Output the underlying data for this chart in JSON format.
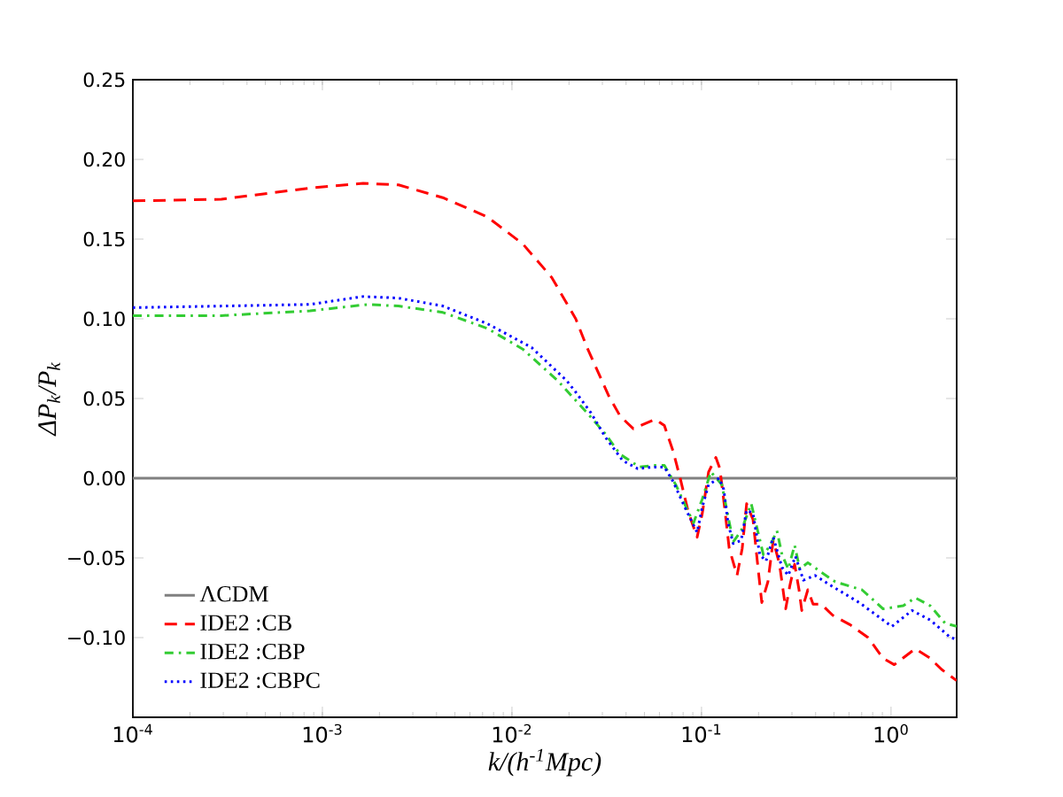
{
  "chart_data": {
    "type": "line",
    "xlabel": "k/(h$^{-1}$Mpc)",
    "ylabel": "ΔP$_{k}$/P$_{k}$",
    "log": "x",
    "legend": "bottom left",
    "xlim": [
      0.0001,
      2.22
    ],
    "ylim": [
      -0.15,
      0.25
    ],
    "xticks": [
      {
        "value": 0.0001,
        "label": "10$^{-4}$"
      },
      {
        "value": 0.001,
        "label": "10$^{-3}$"
      },
      {
        "value": 0.01,
        "label": "10$^{-2}$"
      },
      {
        "value": 0.1,
        "label": "10$^{-1}$"
      },
      {
        "value": 1,
        "label": "10$^{0}$"
      }
    ],
    "yticks": [
      {
        "value": -0.1,
        "label": "−0.10"
      },
      {
        "value": -0.05,
        "label": "−0.05"
      },
      {
        "value": 0,
        "label": "0.00"
      },
      {
        "value": 0.05,
        "label": "0.05"
      },
      {
        "value": 0.1,
        "label": "0.10"
      },
      {
        "value": 0.15,
        "label": "0.15"
      },
      {
        "value": 0.2,
        "label": "0.20"
      },
      {
        "value": 0.25,
        "label": "0.25"
      }
    ],
    "series": [
      {
        "name": "ΛCDM",
        "color": "#808080",
        "line_style": "solid",
        "x": [
          0.0001,
          2.22
        ],
        "values": [
          0,
          0
        ]
      },
      {
        "name": "IDE2 :CB",
        "color": "#ff0000",
        "line_style": "dashed",
        "x": [
          0.0001,
          0.000293,
          0.00086,
          0.00164,
          0.00252,
          0.00432,
          0.0074,
          0.0114,
          0.0162,
          0.0217,
          0.0249,
          0.0323,
          0.0372,
          0.0437,
          0.0571,
          0.0637,
          0.0708,
          0.0772,
          0.0851,
          0.0948,
          0.101,
          0.109,
          0.119,
          0.125,
          0.132,
          0.14,
          0.154,
          0.164,
          0.173,
          0.187,
          0.197,
          0.208,
          0.224,
          0.239,
          0.258,
          0.278,
          0.293,
          0.31,
          0.327,
          0.338,
          0.364,
          0.388,
          0.428,
          0.492,
          0.61,
          0.757,
          0.908,
          1.04,
          1.34,
          1.61,
          1.85,
          2.22
        ],
        "values": [
          0.174,
          0.175,
          0.182,
          0.185,
          0.184,
          0.176,
          0.164,
          0.147,
          0.126,
          0.1,
          0.082,
          0.052,
          0.039,
          0.031,
          0.037,
          0.033,
          0.017,
          0.0,
          -0.021,
          -0.037,
          -0.022,
          0.004,
          0.013,
          0.006,
          -0.017,
          -0.044,
          -0.061,
          -0.044,
          -0.016,
          -0.026,
          -0.052,
          -0.078,
          -0.065,
          -0.039,
          -0.054,
          -0.082,
          -0.067,
          -0.054,
          -0.07,
          -0.083,
          -0.07,
          -0.079,
          -0.079,
          -0.086,
          -0.092,
          -0.1,
          -0.113,
          -0.117,
          -0.107,
          -0.113,
          -0.12,
          -0.127
        ]
      },
      {
        "name": "IDE2 :CBP",
        "color": "#33cc33",
        "line_style": "dashdot",
        "x": [
          0.0001,
          0.000293,
          0.00086,
          0.00173,
          0.00252,
          0.00432,
          0.0074,
          0.0114,
          0.0175,
          0.0249,
          0.031,
          0.0372,
          0.0471,
          0.0553,
          0.0637,
          0.0731,
          0.0851,
          0.0908,
          0.101,
          0.112,
          0.128,
          0.135,
          0.147,
          0.162,
          0.183,
          0.197,
          0.212,
          0.231,
          0.25,
          0.266,
          0.287,
          0.31,
          0.33,
          0.364,
          0.428,
          0.508,
          0.702,
          0.908,
          1.16,
          1.34,
          1.61,
          1.93,
          2.22
        ],
        "values": [
          0.102,
          0.102,
          0.105,
          0.109,
          0.108,
          0.104,
          0.094,
          0.081,
          0.061,
          0.041,
          0.028,
          0.015,
          0.007,
          0.008,
          0.008,
          -0.004,
          -0.021,
          -0.028,
          -0.013,
          0.004,
          -0.004,
          -0.018,
          -0.04,
          -0.033,
          -0.016,
          -0.032,
          -0.048,
          -0.042,
          -0.033,
          -0.048,
          -0.057,
          -0.042,
          -0.057,
          -0.053,
          -0.059,
          -0.065,
          -0.07,
          -0.082,
          -0.08,
          -0.075,
          -0.08,
          -0.091,
          -0.093
        ]
      },
      {
        "name": "IDE2 :CBPC",
        "color": "#0000ff",
        "line_style": "dotted",
        "x": [
          0.0001,
          0.00086,
          0.00164,
          0.00252,
          0.00432,
          0.0074,
          0.0127,
          0.0195,
          0.0217,
          0.0261,
          0.031,
          0.0384,
          0.0461,
          0.0553,
          0.0637,
          0.0708,
          0.0815,
          0.0948,
          0.101,
          0.109,
          0.124,
          0.131,
          0.138,
          0.147,
          0.162,
          0.173,
          0.187,
          0.203,
          0.219,
          0.239,
          0.266,
          0.287,
          0.313,
          0.345,
          0.397,
          0.492,
          0.679,
          0.908,
          1.01,
          1.29,
          1.61,
          2.06,
          2.22
        ],
        "values": [
          0.107,
          0.109,
          0.114,
          0.113,
          0.108,
          0.097,
          0.082,
          0.061,
          0.054,
          0.041,
          0.026,
          0.011,
          0.006,
          0.007,
          0.007,
          -0.002,
          -0.018,
          -0.034,
          -0.018,
          -0.004,
          0.0,
          -0.007,
          -0.028,
          -0.041,
          -0.039,
          -0.02,
          -0.022,
          -0.048,
          -0.052,
          -0.037,
          -0.056,
          -0.061,
          -0.049,
          -0.064,
          -0.061,
          -0.068,
          -0.078,
          -0.089,
          -0.093,
          -0.083,
          -0.089,
          -0.1,
          -0.101
        ]
      }
    ]
  }
}
